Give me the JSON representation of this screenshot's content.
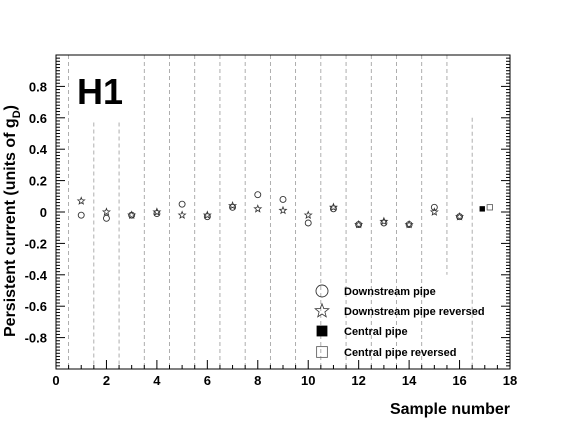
{
  "chart_data": {
    "type": "scatter",
    "panel_label": "H1",
    "xlabel": "Sample number",
    "ylabel_main": "Persistent current (units of g",
    "ylabel_sub": "D",
    "ylabel_close": ")",
    "xlim": [
      0,
      18
    ],
    "ylim": [
      -1.0,
      1.0
    ],
    "x_ticks": [
      0,
      2,
      4,
      6,
      8,
      10,
      12,
      14,
      16,
      18
    ],
    "y_ticks": [
      0.8,
      0.6,
      0.4,
      0.2,
      0,
      -0.2,
      -0.4,
      -0.6,
      -0.8
    ],
    "y_tick_labels": [
      "0.8",
      "0.6",
      "0.4",
      "0.2",
      "0",
      "-0.2",
      "-0.4",
      "-0.6",
      "-0.8"
    ],
    "separators": [
      0.5,
      1.5,
      2.5,
      3.5,
      4.5,
      5.5,
      6.5,
      7.5,
      8.5,
      9.5,
      10.5,
      11.5,
      12.5,
      13.5,
      14.5,
      15.5,
      16.5
    ],
    "legend_position": "bottom-right",
    "series": [
      {
        "name": "Downstream pipe",
        "marker": "open-circle",
        "points": [
          [
            1,
            -0.02
          ],
          [
            2,
            -0.04
          ],
          [
            3,
            -0.02
          ],
          [
            4,
            -0.01
          ],
          [
            5,
            0.05
          ],
          [
            6,
            -0.03
          ],
          [
            7,
            0.03
          ],
          [
            8,
            0.11
          ],
          [
            9,
            0.08
          ],
          [
            10,
            -0.07
          ],
          [
            11,
            0.02
          ],
          [
            12,
            -0.08
          ],
          [
            13,
            -0.07
          ],
          [
            14,
            -0.08
          ],
          [
            15,
            0.03
          ],
          [
            16,
            -0.03
          ]
        ]
      },
      {
        "name": "Downstream pipe reversed",
        "marker": "open-star",
        "points": [
          [
            1,
            0.07
          ],
          [
            2,
            0.0
          ],
          [
            3,
            -0.02
          ],
          [
            4,
            0.0
          ],
          [
            5,
            -0.02
          ],
          [
            6,
            -0.02
          ],
          [
            7,
            0.04
          ],
          [
            8,
            0.02
          ],
          [
            9,
            0.01
          ],
          [
            10,
            -0.02
          ],
          [
            11,
            0.03
          ],
          [
            12,
            -0.08
          ],
          [
            13,
            -0.06
          ],
          [
            14,
            -0.08
          ],
          [
            15,
            0.0
          ],
          [
            16,
            -0.03
          ]
        ]
      },
      {
        "name": "Central pipe",
        "marker": "filled-square",
        "points": [
          [
            16.9,
            0.02
          ]
        ]
      },
      {
        "name": "Central pipe reversed",
        "marker": "open-square",
        "points": [
          [
            17.2,
            0.03
          ]
        ]
      }
    ]
  }
}
